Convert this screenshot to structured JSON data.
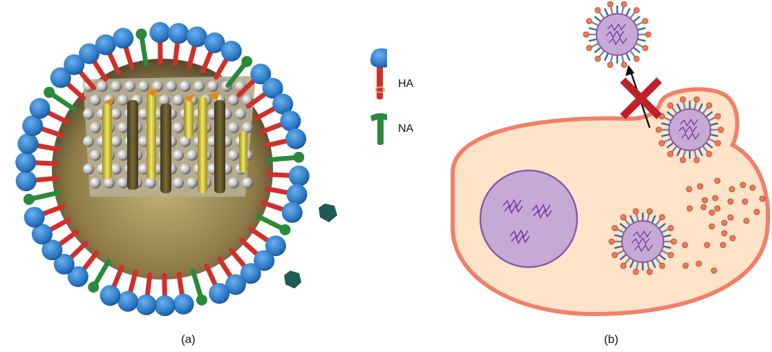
{
  "panel_a": {
    "caption": "(a)",
    "legend": {
      "ha_label": "HA",
      "na_label": "NA"
    }
  },
  "panel_b": {
    "caption": "(b)"
  },
  "colors": {
    "ha_head": "#2f7fc8",
    "ha_stalk": "#d0302b",
    "na_green": "#2a8a3a",
    "envelope_gold": "#a8945a",
    "rna_yellow": "#e8d640",
    "cell_fill": "#fde3c8",
    "cell_membrane": "#f08068",
    "nucleus_fill": "#c6aad6",
    "nucleus_edge": "#8a5aa8",
    "virus_particle": "#f07a5a",
    "block_x": "#c0202a"
  }
}
